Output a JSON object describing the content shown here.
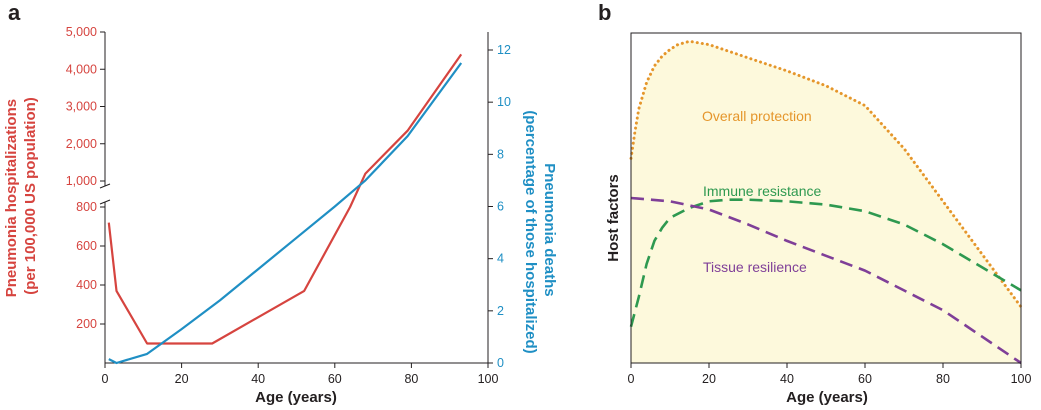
{
  "colors": {
    "red": "#d6443f",
    "blue": "#1f8fc4",
    "orange": "#e5962b",
    "green": "#2e9950",
    "purple": "#7f3f98",
    "fill": "#fdf9dc",
    "axis": "#231f20"
  },
  "chart_data": [
    {
      "panel": "a",
      "type": "line",
      "xlabel": "Age (years)",
      "ylabel": "Pneumonia hospitalizations (per 100,000 US population)",
      "ylabel_right": "Pneumonia deaths (percentage of those hospitalized)",
      "ylabel_lines": [
        "Pneumonia hospitalizations",
        "(per 100,000 US population)"
      ],
      "ylabel_right_lines": [
        "Pneumonia deaths",
        "(percentage of those hospitalized)"
      ],
      "xlim": [
        0,
        100
      ],
      "x_ticks": [
        "0",
        "20",
        "40",
        "60",
        "80",
        "100"
      ],
      "y_ticks_lower": [
        "200",
        "400",
        "600",
        "800"
      ],
      "y_ticks_upper": [
        "1,000",
        "2,000",
        "3,000",
        "4,000",
        "5,000"
      ],
      "y_ticks_right": [
        "0",
        "2",
        "4",
        "6",
        "8",
        "10",
        "12"
      ],
      "ylim_right": [
        0,
        12
      ],
      "axis_break": true,
      "series": [
        {
          "axis": "left",
          "color": "red",
          "x": [
            1,
            3,
            11,
            28,
            52,
            64,
            68,
            79,
            93
          ],
          "y": [
            720,
            370,
            100,
            100,
            370,
            800,
            1200,
            2350,
            4400
          ]
        },
        {
          "axis": "right",
          "color": "blue",
          "x": [
            1,
            3,
            11,
            20,
            30,
            40,
            50,
            60,
            68,
            79,
            93
          ],
          "y": [
            0.15,
            0.0,
            0.35,
            1.3,
            2.4,
            3.6,
            4.8,
            6.0,
            7.0,
            8.7,
            11.5
          ]
        }
      ]
    },
    {
      "panel": "b",
      "type": "line",
      "xlabel": "Age (years)",
      "ylabel": "Host factors",
      "xlim": [
        0,
        100
      ],
      "ylim": [
        0,
        100
      ],
      "x_ticks": [
        "0",
        "20",
        "40",
        "60",
        "80",
        "100"
      ],
      "area_under": "Overall protection",
      "series": [
        {
          "name": "Overall protection",
          "color": "orange",
          "style": "dotted",
          "x": [
            0,
            1,
            2,
            4,
            6,
            8,
            10,
            12,
            15,
            20,
            30,
            40,
            50,
            60,
            70,
            80,
            90,
            100
          ],
          "y": [
            62,
            70,
            77,
            85,
            90,
            93,
            95,
            96.5,
            97.5,
            96.5,
            92.5,
            88.5,
            84,
            78,
            65,
            49,
            33,
            17
          ]
        },
        {
          "name": "Immune resistance",
          "color": "green",
          "style": "dashed",
          "x": [
            0,
            2,
            4,
            6,
            8,
            10,
            15,
            20,
            25,
            30,
            40,
            50,
            60,
            70,
            80,
            90,
            100
          ],
          "y": [
            11,
            20,
            30,
            37,
            41,
            44,
            47,
            49,
            49.5,
            49.5,
            49,
            48,
            46,
            42,
            36,
            29,
            22
          ]
        },
        {
          "name": "Tissue resilience",
          "color": "purple",
          "style": "dashed",
          "x": [
            0,
            10,
            20,
            30,
            40,
            50,
            60,
            70,
            80,
            90,
            100
          ],
          "y": [
            50,
            49,
            46.5,
            42,
            37,
            32.5,
            28,
            22,
            16,
            8,
            0
          ]
        }
      ]
    }
  ]
}
